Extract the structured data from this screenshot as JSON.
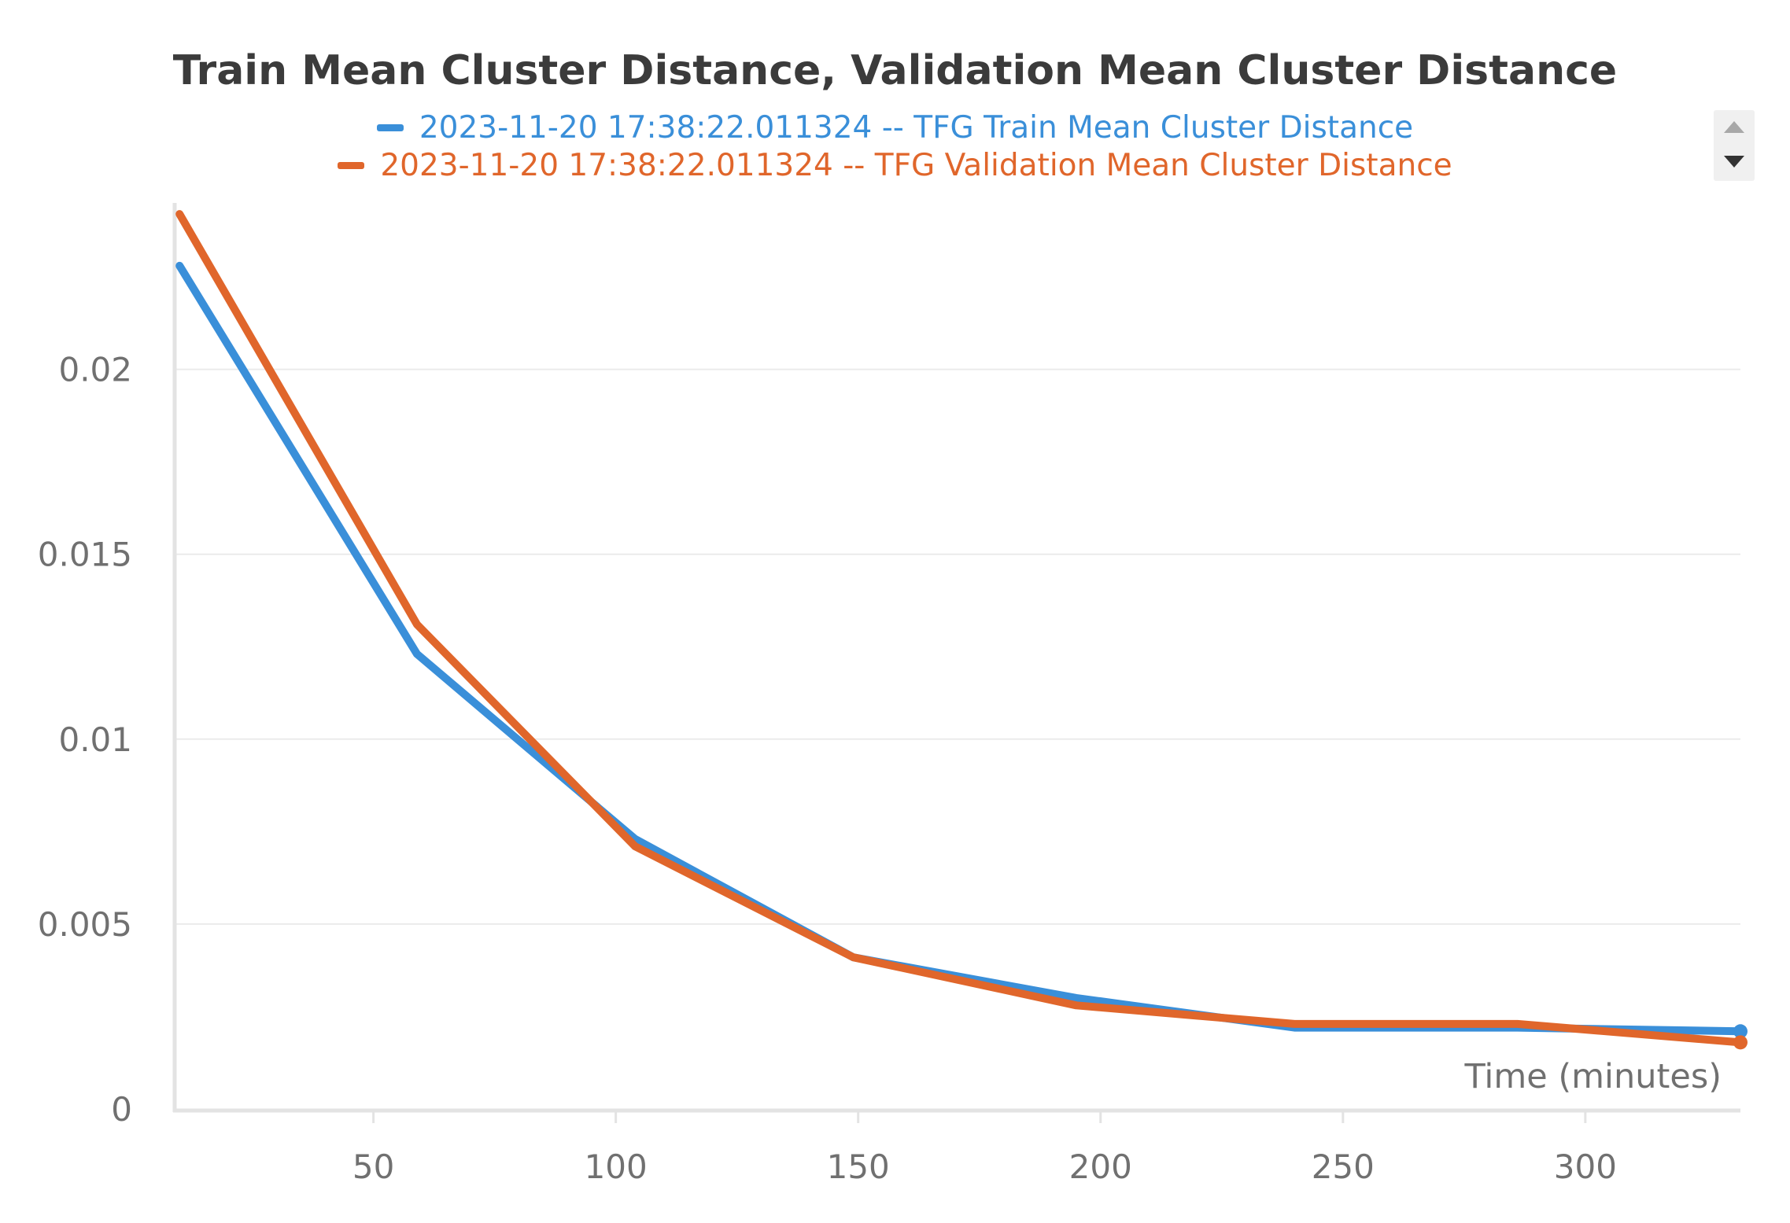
{
  "chart_data": {
    "type": "line",
    "title": "Train Mean Cluster Distance, Validation Mean Cluster Distance",
    "xlabel": "Time (minutes)",
    "ylabel": "",
    "xlim": [
      9,
      332
    ],
    "ylim": [
      0,
      0.0245
    ],
    "x_ticks": [
      50,
      100,
      150,
      200,
      250,
      300
    ],
    "x_tick_labels": [
      "50",
      "100",
      "150",
      "200",
      "250",
      "300"
    ],
    "y_ticks": [
      0,
      0.005,
      0.01,
      0.015,
      0.02
    ],
    "y_tick_labels": [
      "0",
      "0.005",
      "0.01",
      "0.015",
      "0.02"
    ],
    "grid": true,
    "legend": "top-center",
    "series": [
      {
        "name": "2023-11-20 17:38:22.011324 -- TFG Train Mean Cluster Distance",
        "color": "#3a8fd9",
        "x": [
          10,
          59,
          104,
          149,
          195,
          240,
          286,
          332
        ],
        "y": [
          0.0228,
          0.0123,
          0.0073,
          0.0041,
          0.003,
          0.0022,
          0.0022,
          0.0021
        ]
      },
      {
        "name": "2023-11-20 17:38:22.011324 -- TFG Validation Mean Cluster Distance",
        "color": "#e0662b",
        "x": [
          10,
          59,
          104,
          149,
          195,
          240,
          286,
          332
        ],
        "y": [
          0.0242,
          0.0131,
          0.0071,
          0.0041,
          0.0028,
          0.0023,
          0.0023,
          0.0018
        ]
      }
    ]
  }
}
